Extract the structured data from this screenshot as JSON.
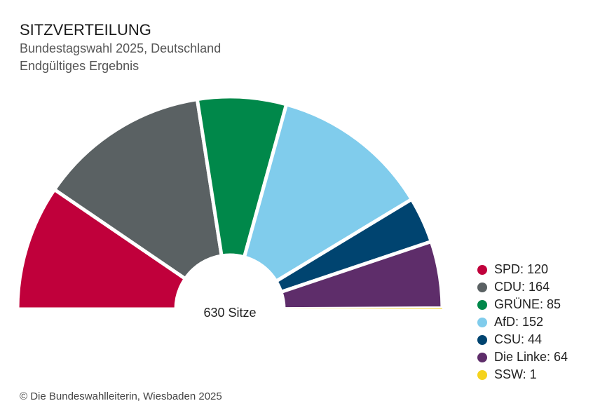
{
  "header": {
    "title": "SITZVERTEILUNG",
    "subtitle1": "Bundestagswahl 2025, Deutschland",
    "subtitle2": "Endgültiges Ergebnis"
  },
  "chart_data": {
    "type": "pie",
    "variant": "half-donut (parliament)",
    "center_label": "630 Sitze",
    "total": 630,
    "slices": [
      {
        "name": "SPD",
        "label": "SPD: 120",
        "value": 120,
        "color": "#c0003b"
      },
      {
        "name": "CDU",
        "label": "CDU: 164",
        "value": 164,
        "color": "#5a6163"
      },
      {
        "name": "GRÜNE",
        "label": "GRÜNE: 85",
        "value": 85,
        "color": "#00884a"
      },
      {
        "name": "AfD",
        "label": "AfD: 152",
        "value": 152,
        "color": "#80ccec"
      },
      {
        "name": "CSU",
        "label": "CSU: 44",
        "value": 44,
        "color": "#004470"
      },
      {
        "name": "Die Linke",
        "label": "Die Linke: 64",
        "value": 64,
        "color": "#5e2d6a"
      },
      {
        "name": "SSW",
        "label": "SSW: 1",
        "value": 1,
        "color": "#f5d31d"
      }
    ],
    "legend_position": "bottom-right"
  },
  "footer": {
    "source": "© Die Bundeswahlleiterin, Wiesbaden 2025"
  }
}
